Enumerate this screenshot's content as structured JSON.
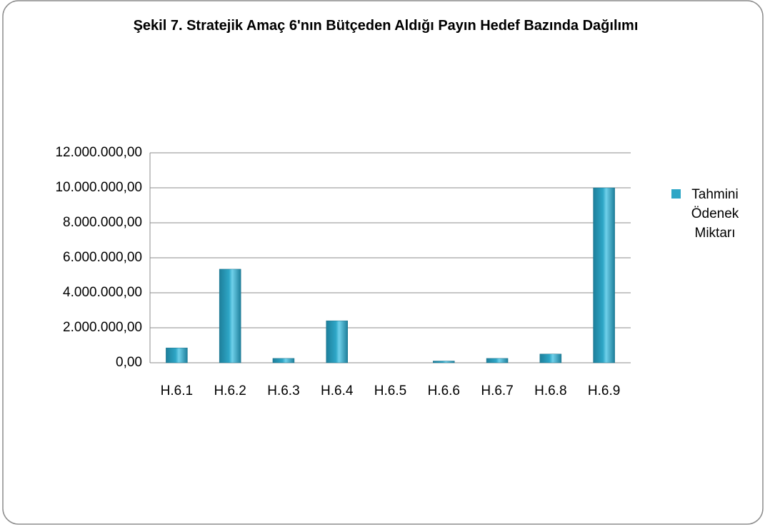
{
  "chart_data": {
    "type": "bar",
    "title": "Şekil 7. Stratejik Amaç 6'nın Bütçeden Aldığı Payın Hedef Bazında Dağılımı",
    "categories": [
      "H.6.1",
      "H.6.2",
      "H.6.3",
      "H.6.4",
      "H.6.5",
      "H.6.6",
      "H.6.7",
      "H.6.8",
      "H.6.9"
    ],
    "series": [
      {
        "name": "Tahmini Ödenek Miktarı",
        "color": "#2ea6c6",
        "values": [
          850000,
          5350000,
          250000,
          2400000,
          0,
          100000,
          250000,
          500000,
          10000000
        ]
      }
    ],
    "ylim": [
      0,
      12000000
    ],
    "yticks": [
      {
        "value": 0,
        "label": "0,00"
      },
      {
        "value": 2000000,
        "label": "2.000.000,00"
      },
      {
        "value": 4000000,
        "label": "4.000.000,00"
      },
      {
        "value": 6000000,
        "label": "6.000.000,00"
      },
      {
        "value": 8000000,
        "label": "8.000.000,00"
      },
      {
        "value": 10000000,
        "label": "10.000.000,00"
      },
      {
        "value": 12000000,
        "label": "12.000.000,00"
      }
    ],
    "grid": true,
    "legend": "right"
  }
}
